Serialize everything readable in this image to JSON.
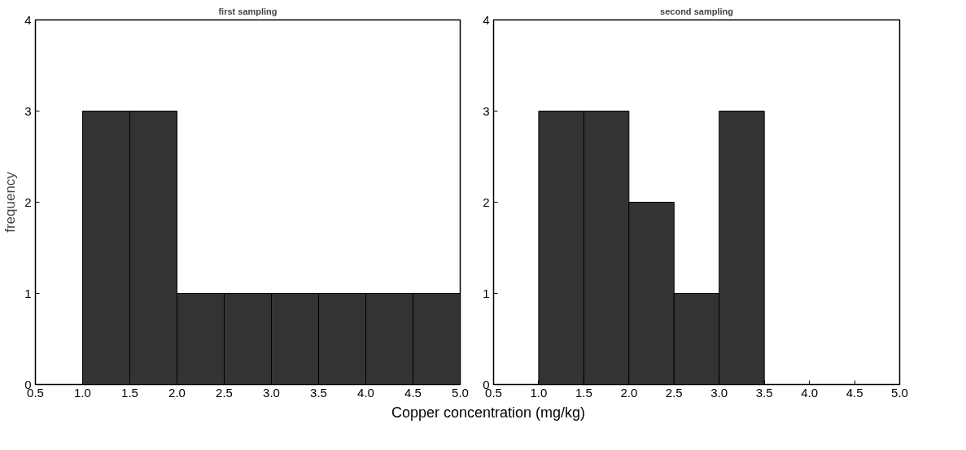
{
  "chart_data": [
    {
      "type": "histogram",
      "title": "first sampling",
      "ylabel": "frequency",
      "xlabel": "Copper concentration (mg/kg)",
      "bins": [
        1.0,
        1.5,
        2.0,
        2.5,
        3.0,
        3.5,
        4.0,
        4.5,
        5.0
      ],
      "values": [
        3,
        3,
        1,
        1,
        1,
        1,
        1,
        1
      ],
      "color": "#333333",
      "xlim": [
        0.5,
        5.0
      ],
      "xticks": [
        {
          "value": 0.5,
          "label": "0.5"
        },
        {
          "value": 1.0,
          "label": "1.0"
        },
        {
          "value": 1.5,
          "label": "1.5"
        },
        {
          "value": 2.0,
          "label": "2.0"
        },
        {
          "value": 2.5,
          "label": "2.5"
        },
        {
          "value": 3.0,
          "label": "3.0"
        },
        {
          "value": 3.5,
          "label": "3.5"
        },
        {
          "value": 4.0,
          "label": "4.0"
        },
        {
          "value": 4.5,
          "label": "4.5"
        },
        {
          "value": 5.0,
          "label": "5.0"
        }
      ],
      "ylim": [
        0,
        4
      ],
      "yticks": [
        0,
        1,
        2,
        3,
        4
      ],
      "grid": false
    },
    {
      "type": "histogram",
      "title": "second sampling",
      "bins": [
        1.0,
        1.5,
        2.0,
        2.5,
        3.0,
        3.5
      ],
      "values": [
        3,
        3,
        2,
        1,
        3
      ],
      "color": "#333333",
      "xlim": [
        0.5,
        5.0
      ],
      "xticks": [
        {
          "value": 0.5,
          "label": "0.5"
        },
        {
          "value": 1.0,
          "label": "1.0"
        },
        {
          "value": 1.5,
          "label": "1.5"
        },
        {
          "value": 2.0,
          "label": "2.0"
        },
        {
          "value": 2.5,
          "label": "2.5"
        },
        {
          "value": 3.0,
          "label": "3.0"
        },
        {
          "value": 3.5,
          "label": "3.5"
        },
        {
          "value": 4.0,
          "label": "4.0"
        },
        {
          "value": 4.5,
          "label": "4.5"
        },
        {
          "value": 5.0,
          "label": "5.0"
        }
      ],
      "ylim": [
        0,
        4
      ],
      "yticks": [
        0,
        1,
        2,
        3,
        4
      ],
      "grid": false
    }
  ]
}
